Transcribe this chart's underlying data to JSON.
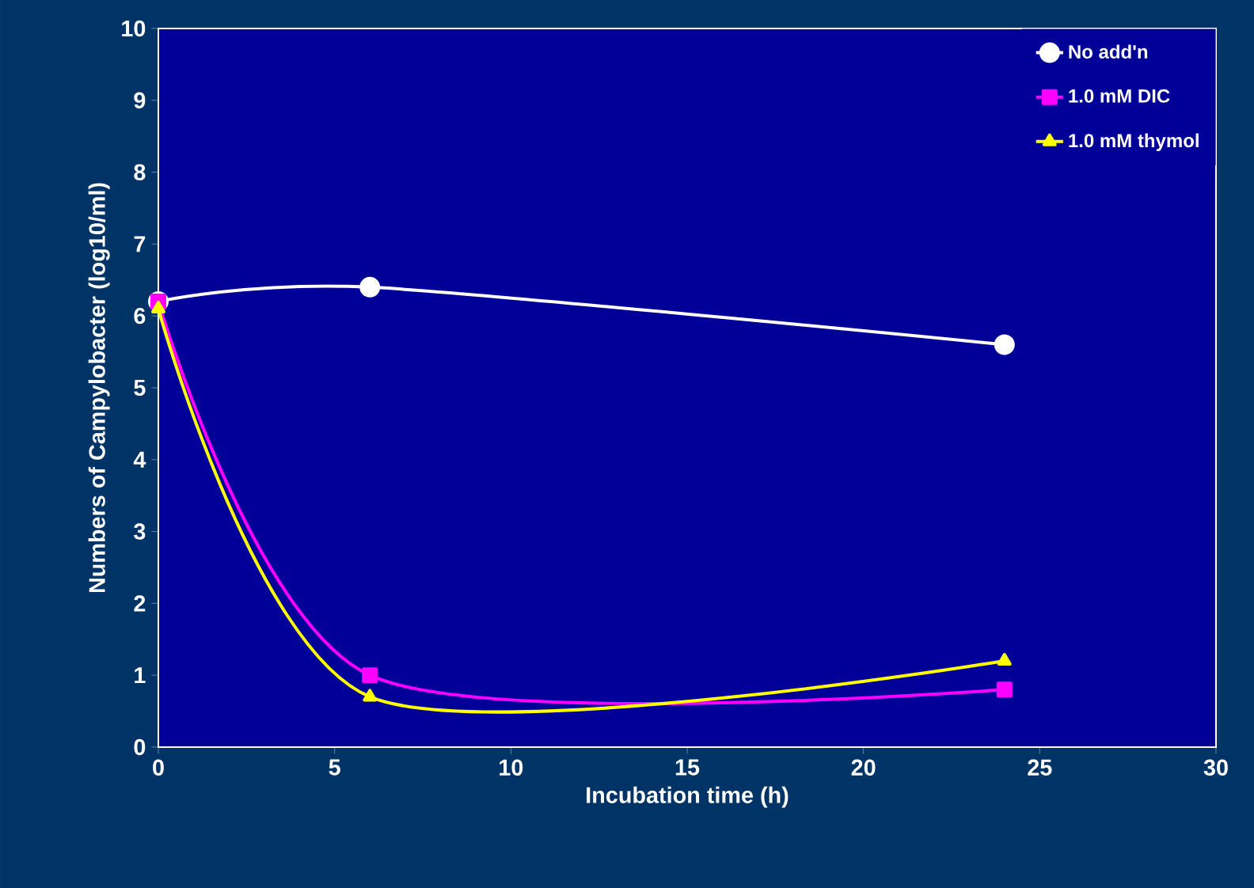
{
  "chart_data": {
    "type": "line",
    "xlabel": "Incubation time (h)",
    "ylabel": "Numbers of Campylobacter (log10/ml)",
    "xlim": [
      0,
      30
    ],
    "xticks": [
      0,
      5,
      10,
      15,
      20,
      25,
      30
    ],
    "ylim": [
      0,
      10
    ],
    "yticks": [
      0,
      1,
      2,
      3,
      4,
      5,
      6,
      7,
      8,
      9,
      10
    ],
    "grid": false,
    "legend": "top right",
    "line_style": "solid",
    "series": [
      {
        "name": "No add'n",
        "color": "#ffffff",
        "marker": "circle",
        "x": [
          0,
          6,
          24
        ],
        "values": [
          6.2,
          6.4,
          5.6
        ]
      },
      {
        "name": "1.0 mM DIC",
        "color": "#ff00ff",
        "marker": "square",
        "x": [
          0,
          6,
          24
        ],
        "values": [
          6.2,
          1.0,
          0.8
        ]
      },
      {
        "name": "1.0 mM thymol",
        "color": "#ffff00",
        "marker": "triangle",
        "x": [
          0,
          6,
          24
        ],
        "values": [
          6.1,
          0.7,
          1.2
        ]
      }
    ]
  }
}
